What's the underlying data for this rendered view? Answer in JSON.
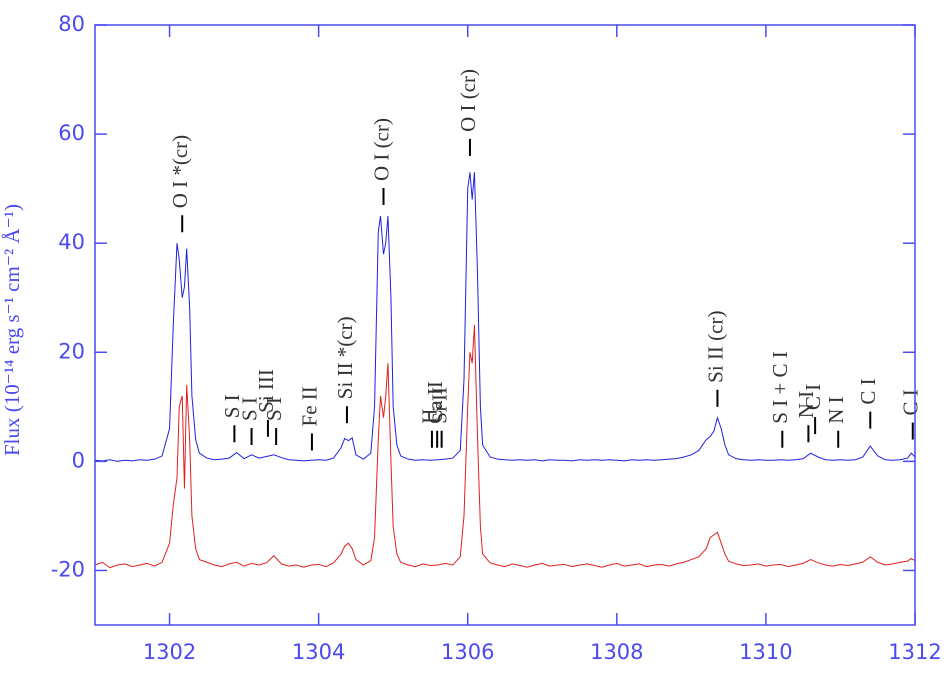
{
  "chart_data": {
    "type": "line",
    "y_label": "Flux (10⁻¹⁴ erg s⁻¹ cm⁻² Å⁻¹)",
    "x": [
      1301.0,
      1301.1,
      1301.2,
      1301.3,
      1301.4,
      1301.5,
      1301.6,
      1301.7,
      1301.8,
      1301.9,
      1302.0,
      1302.05,
      1302.1,
      1302.13,
      1302.17,
      1302.2,
      1302.23,
      1302.27,
      1302.3,
      1302.35,
      1302.4,
      1302.5,
      1302.6,
      1302.7,
      1302.8,
      1302.9,
      1303.0,
      1303.1,
      1303.2,
      1303.3,
      1303.4,
      1303.5,
      1303.6,
      1303.7,
      1303.8,
      1303.9,
      1304.0,
      1304.1,
      1304.2,
      1304.3,
      1304.35,
      1304.4,
      1304.45,
      1304.5,
      1304.6,
      1304.7,
      1304.75,
      1304.8,
      1304.83,
      1304.87,
      1304.9,
      1304.93,
      1304.97,
      1305.0,
      1305.05,
      1305.1,
      1305.2,
      1305.3,
      1305.4,
      1305.5,
      1305.6,
      1305.7,
      1305.8,
      1305.9,
      1305.95,
      1306.0,
      1306.03,
      1306.06,
      1306.09,
      1306.13,
      1306.17,
      1306.2,
      1306.3,
      1306.4,
      1306.5,
      1306.6,
      1306.7,
      1306.8,
      1306.9,
      1307.0,
      1307.1,
      1307.2,
      1307.3,
      1307.4,
      1307.5,
      1307.6,
      1307.7,
      1307.8,
      1307.9,
      1308.0,
      1308.1,
      1308.2,
      1308.3,
      1308.4,
      1308.5,
      1308.6,
      1308.7,
      1308.8,
      1308.9,
      1309.0,
      1309.1,
      1309.2,
      1309.25,
      1309.3,
      1309.35,
      1309.4,
      1309.45,
      1309.5,
      1309.6,
      1309.7,
      1309.8,
      1309.9,
      1310.0,
      1310.1,
      1310.2,
      1310.3,
      1310.4,
      1310.5,
      1310.6,
      1310.7,
      1310.8,
      1310.9,
      1311.0,
      1311.1,
      1311.2,
      1311.3,
      1311.4,
      1311.5,
      1311.6,
      1311.7,
      1311.8,
      1311.9,
      1311.95,
      1312.0
    ],
    "series": [
      {
        "color": "#2020e0",
        "values": [
          0.2,
          0.1,
          0.3,
          0.0,
          0.2,
          0.1,
          0.3,
          0.2,
          0.4,
          1.0,
          6,
          25,
          40,
          37,
          30,
          32,
          39,
          28,
          12,
          4,
          1.5,
          0.6,
          0.3,
          0.4,
          0.6,
          1.6,
          0.5,
          1.2,
          0.6,
          0.9,
          1.2,
          0.7,
          0.3,
          0.2,
          0.1,
          0.2,
          0.3,
          0.2,
          0.6,
          2.5,
          4.2,
          3.8,
          4.3,
          1.2,
          0.4,
          1.5,
          10,
          42,
          45,
          38,
          40,
          45,
          30,
          10,
          3,
          1,
          0.4,
          0.2,
          0.3,
          0.2,
          0.3,
          0.4,
          0.6,
          2,
          15,
          50,
          53,
          48,
          53,
          35,
          10,
          3,
          0.8,
          0.4,
          0.3,
          0.2,
          0.3,
          0.2,
          0.3,
          0.1,
          0.3,
          0.2,
          0.2,
          0.1,
          0.3,
          0.2,
          0.3,
          0.2,
          0.3,
          0.2,
          0.1,
          0.3,
          0.2,
          0.3,
          0.2,
          0.3,
          0.4,
          0.5,
          0.8,
          1.2,
          2,
          4,
          4.5,
          5.5,
          8,
          6,
          3,
          1.2,
          0.5,
          0.3,
          0.2,
          0.3,
          0.2,
          0.2,
          0.3,
          0.2,
          0.3,
          0.5,
          1.5,
          0.8,
          0.3,
          0.2,
          0.3,
          0.2,
          0.3,
          0.8,
          2.8,
          1,
          0.3,
          0.2,
          0.3,
          0.6,
          1.5,
          0.8
        ]
      },
      {
        "color": "#e02020",
        "values": [
          -19,
          -18.5,
          -19.5,
          -19,
          -18.8,
          -19.3,
          -19,
          -18.7,
          -19.2,
          -18.5,
          -15,
          -8,
          -3,
          10,
          12,
          -5,
          14,
          4,
          -10,
          -16,
          -18,
          -18.5,
          -19,
          -19.3,
          -18.8,
          -18.5,
          -19.2,
          -18.7,
          -19,
          -18.6,
          -17.3,
          -18.8,
          -19.2,
          -19,
          -19.4,
          -19,
          -18.9,
          -19.3,
          -18.6,
          -17,
          -15.5,
          -15,
          -16,
          -18,
          -19,
          -18.2,
          -14,
          4,
          12,
          8,
          12,
          18,
          0,
          -12,
          -17,
          -18.5,
          -19,
          -19.3,
          -18.8,
          -19.1,
          -19,
          -18.7,
          -19,
          -17.5,
          -10,
          10,
          20,
          18,
          25,
          5,
          -12,
          -17,
          -18.6,
          -19,
          -19.3,
          -18.8,
          -19.1,
          -19.4,
          -19,
          -18.7,
          -19.2,
          -19,
          -18.9,
          -19.3,
          -19,
          -18.8,
          -19.1,
          -19.4,
          -19,
          -18.7,
          -19.2,
          -19,
          -18.8,
          -19.3,
          -19,
          -18.9,
          -19.2,
          -18.8,
          -18.5,
          -18,
          -17.5,
          -16,
          -14,
          -13.5,
          -13,
          -15,
          -17,
          -18.3,
          -18.8,
          -19.1,
          -19,
          -18.8,
          -19.2,
          -19,
          -18.9,
          -19.3,
          -19,
          -18.7,
          -18,
          -18.6,
          -19,
          -19.2,
          -18.9,
          -19.1,
          -18.8,
          -18.5,
          -17.5,
          -18.5,
          -19,
          -18.8,
          -18.5,
          -18.3,
          -17.8,
          -18.2
        ]
      }
    ],
    "annotations": [
      {
        "text": "O I *(cr)",
        "x": 1302.17,
        "y": 42
      },
      {
        "text": "S I",
        "x": 1302.87,
        "y": 3.5
      },
      {
        "text": "S I",
        "x": 1303.1,
        "y": 3
      },
      {
        "text": "Si III",
        "x": 1303.32,
        "y": 4.5
      },
      {
        "text": "S I",
        "x": 1303.43,
        "y": 3
      },
      {
        "text": "Fe II",
        "x": 1303.91,
        "y": 2
      },
      {
        "text": "Si II *(cr)",
        "x": 1304.38,
        "y": 7
      },
      {
        "text": "O I (cr)",
        "x": 1304.87,
        "y": 47
      },
      {
        "text": "H₂",
        "x": 1305.52,
        "y": 2.5
      },
      {
        "text": "Ca II",
        "x": 1305.59,
        "y": 2.5
      },
      {
        "text": "Si II",
        "x": 1305.65,
        "y": 2.5
      },
      {
        "text": "O I (cr)",
        "x": 1306.03,
        "y": 56
      },
      {
        "text": "Si II (cr)",
        "x": 1309.35,
        "y": 10
      },
      {
        "text": "S I + C I",
        "x": 1310.22,
        "y": 2.5
      },
      {
        "text": "N I",
        "x": 1310.57,
        "y": 3.5
      },
      {
        "text": "C I",
        "x": 1310.66,
        "y": 5
      },
      {
        "text": "N I",
        "x": 1310.97,
        "y": 2.5
      },
      {
        "text": "C I",
        "x": 1311.4,
        "y": 6
      },
      {
        "text": "C I",
        "x": 1311.97,
        "y": 4
      }
    ],
    "xlim": [
      1301,
      1312
    ],
    "xticks": [
      1302,
      1304,
      1306,
      1308,
      1310,
      1312
    ],
    "ylim": [
      -30,
      80
    ],
    "yticks": [
      -20,
      0,
      20,
      40,
      60,
      80
    ],
    "axis_color": "#4a4af0",
    "label_color": "#333333"
  }
}
